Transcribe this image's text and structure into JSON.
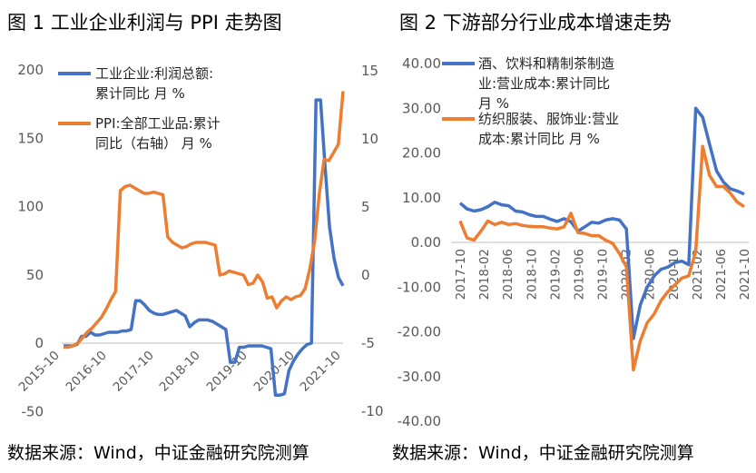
{
  "chart_data": [
    {
      "type": "line",
      "title": "图 1 工业企业利润与 PPI 走势图",
      "source": "数据来源：Wind，中证金融研究院测算",
      "x_ticks": [
        "2015-10",
        "2016-10",
        "2017-10",
        "2018-10",
        "2019-10",
        "2020-10",
        "2021-10"
      ],
      "y_left": {
        "min": -50,
        "max": 200,
        "ticks": [
          "200",
          "150",
          "100",
          "50",
          "0",
          "-50"
        ]
      },
      "y_right": {
        "min": -10,
        "max": 15,
        "ticks": [
          "15",
          "10",
          "5",
          "0",
          "-5",
          "-10"
        ]
      },
      "legend": {
        "placement": "top-left"
      },
      "series": [
        {
          "name": "工业企业:利润总额:累计同比 月 %",
          "legend_lines": [
            "工业企业:利润总额:",
            "累计同比 月 %"
          ],
          "color": "#4472C4",
          "axis": "left",
          "values": [
            -2,
            -2,
            -2,
            -1,
            5,
            5,
            8,
            6,
            6,
            7,
            8,
            8,
            8,
            9,
            9,
            10,
            31,
            31,
            28,
            24,
            22,
            21,
            21,
            22,
            23,
            24,
            22,
            20,
            12,
            15,
            17,
            17,
            17,
            16,
            14,
            12,
            10,
            -14,
            -14,
            -3,
            -3,
            -2,
            -2,
            -2,
            -2,
            -3,
            -4,
            -38,
            -38,
            -37,
            -20,
            -13,
            -8,
            -4,
            -1,
            0,
            178,
            178,
            130,
            85,
            62,
            48,
            42
          ]
        },
        {
          "name": "PPI:全部工业品:累计同比（右轴） 月 %",
          "legend_lines": [
            "PPI:全部工业品:累计",
            "同比（右轴） 月 %"
          ],
          "color": "#ED7D31",
          "axis": "right",
          "values": [
            -5.3,
            -5.3,
            -5.2,
            -5.0,
            -4.6,
            -4.2,
            -3.9,
            -3.5,
            -3.1,
            -2.5,
            -1.8,
            -1.2,
            6.2,
            6.5,
            6.6,
            6.4,
            6.2,
            6.0,
            6.0,
            6.1,
            6.0,
            5.9,
            2.8,
            2.4,
            2.2,
            2.0,
            2.1,
            2.3,
            2.4,
            2.4,
            2.4,
            2.3,
            2.2,
            0.0,
            0.1,
            0.3,
            0.2,
            0.1,
            0.0,
            -0.7,
            -0.6,
            0.0,
            -0.5,
            -1.7,
            -1.6,
            -2.4,
            -1.9,
            -1.6,
            -1.8,
            -1.6,
            -1.5,
            -1.0,
            0.5,
            2.5,
            6.0,
            8.5,
            8.4,
            9.0,
            9.6,
            13.5
          ]
        }
      ]
    },
    {
      "type": "line",
      "title": "图 2 下游部分行业成本增速走势",
      "source": "数据来源：Wind，中证金融研究院测算",
      "x_ticks": [
        "2017-10",
        "2018-02",
        "2018-06",
        "2018-10",
        "2019-02",
        "2019-06",
        "2019-10",
        "2020-02",
        "2020-06",
        "2020-10",
        "2021-02",
        "2021-06",
        "2021-10"
      ],
      "y": {
        "min": -40,
        "max": 40,
        "ticks": [
          "40.00",
          "30.00",
          "20.00",
          "10.00",
          "0.00",
          "-10.00",
          "-20.00",
          "-30.00",
          "-40.00"
        ]
      },
      "legend": {
        "placement": "top-right"
      },
      "series": [
        {
          "name": "酒、饮料和精制茶制造业:营业成本:累计同比 月 %",
          "legend_lines": [
            "酒、饮料和精制茶制造",
            "业:营业成本:累计同比",
            "月 %"
          ],
          "color": "#4472C4",
          "values": [
            8.8,
            7.5,
            7.0,
            7.3,
            8.0,
            9.0,
            8.4,
            8.2,
            7.0,
            6.8,
            6.2,
            5.8,
            5.8,
            5.2,
            4.7,
            5.3,
            4.6,
            2.5,
            3.5,
            4.5,
            4.3,
            5.0,
            5.3,
            5.0,
            3.0,
            -21.5,
            -14.0,
            -10.0,
            -7.5,
            -6.0,
            -5.5,
            -4.5,
            -4.2,
            -5.0,
            30.0,
            28.0,
            22.0,
            16.0,
            13.5,
            12.0,
            11.5,
            10.8
          ]
        },
        {
          "name": "纺织服装、服饰业:营业成本:累计同比 月 %",
          "legend_lines": [
            "纺织服装、服饰业:营业",
            "成本:累计同比 月 %"
          ],
          "color": "#ED7D31",
          "values": [
            4.8,
            1.0,
            0.5,
            2.5,
            4.8,
            4.0,
            4.5,
            4.0,
            4.2,
            3.8,
            3.6,
            3.5,
            3.5,
            3.2,
            3.0,
            3.5,
            6.5,
            2.2,
            2.0,
            1.5,
            1.5,
            0.5,
            -0.2,
            -2.5,
            -5.5,
            -28.5,
            -22.0,
            -18.0,
            -16.0,
            -13.0,
            -11.0,
            -9.5,
            -8.0,
            -7.5,
            -2.0,
            21.5,
            15.0,
            12.5,
            12.5,
            11.0,
            9.0,
            8.0
          ]
        }
      ]
    }
  ]
}
